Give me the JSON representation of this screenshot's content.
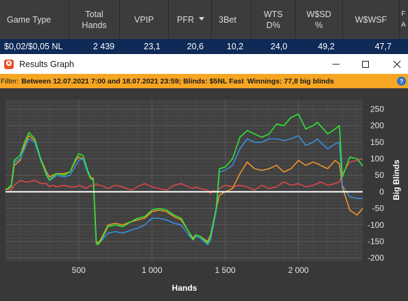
{
  "stats_table": {
    "headers": [
      "Game Type",
      "Total Hands",
      "VPIP",
      "PFR",
      "3Bet",
      "WTS D%",
      "W$SD %",
      "W$WSF",
      "F A"
    ],
    "header_lines": [
      [
        "Game Type"
      ],
      [
        "Total",
        "Hands"
      ],
      [
        "VPIP"
      ],
      [
        "PFR"
      ],
      [
        "3Bet"
      ],
      [
        "WTS",
        "D%"
      ],
      [
        "W$SD",
        "%"
      ],
      [
        "W$WSF"
      ],
      [
        "F",
        "A"
      ]
    ],
    "row": [
      "$0,02/$0,05 NL",
      "2 439",
      "23,1",
      "20,6",
      "10,2",
      "24,0",
      "49,2",
      "47,7",
      ""
    ]
  },
  "window": {
    "title": "Results Graph",
    "app_icon": "holdem-manager-icon",
    "controls": [
      "minimize",
      "maximize",
      "close"
    ]
  },
  "filter": {
    "prefix": "Filter:",
    "range": "Between 12.07.2021 7:00 and 18.07.2021 23:59; Blinds: $5NL Fast",
    "winnings": "Winnings: 77,8 big blinds"
  },
  "chart_data": {
    "type": "line",
    "xlabel": "Hands",
    "ylabel": "Big Blinds",
    "xlim": [
      0,
      2439
    ],
    "ylim": [
      -210,
      280
    ],
    "xticks": [
      500,
      1000,
      1500,
      2000
    ],
    "xtick_labels": [
      "500",
      "1 000",
      "1 500",
      "2 000"
    ],
    "yticks": [
      250,
      200,
      150,
      100,
      50,
      0,
      -50,
      -100,
      -150,
      -200
    ],
    "grid": true,
    "series": [
      {
        "color": "#2ee82e",
        "x": [
          0,
          40,
          60,
          100,
          130,
          160,
          200,
          240,
          280,
          300,
          320,
          350,
          400,
          440,
          480,
          500,
          530,
          550,
          580,
          600,
          620,
          630,
          650,
          700,
          750,
          800,
          860,
          900,
          950,
          1000,
          1050,
          1100,
          1150,
          1200,
          1250,
          1280,
          1300,
          1330,
          1380,
          1400,
          1420,
          1440,
          1460,
          1500,
          1550,
          1600,
          1650,
          1700,
          1750,
          1800,
          1850,
          1900,
          1950,
          2000,
          2050,
          2100,
          2130,
          2150,
          2200,
          2250,
          2280,
          2300,
          2350,
          2400,
          2439
        ],
        "y": [
          5,
          20,
          95,
          110,
          150,
          180,
          160,
          100,
          50,
          35,
          45,
          55,
          50,
          60,
          100,
          115,
          110,
          80,
          40,
          35,
          -155,
          -160,
          -150,
          -105,
          -100,
          -105,
          -90,
          -80,
          -75,
          -55,
          -50,
          -55,
          -70,
          -80,
          -120,
          -145,
          -130,
          -135,
          -155,
          -135,
          -90,
          -45,
          70,
          75,
          100,
          165,
          185,
          175,
          165,
          175,
          205,
          200,
          225,
          235,
          190,
          200,
          210,
          200,
          175,
          190,
          200,
          45,
          105,
          100,
          78
        ]
      },
      {
        "color": "#3b8ee0",
        "x": [
          0,
          40,
          60,
          100,
          130,
          160,
          200,
          240,
          280,
          300,
          320,
          350,
          400,
          440,
          480,
          500,
          530,
          550,
          580,
          600,
          620,
          630,
          650,
          700,
          750,
          800,
          860,
          900,
          950,
          1000,
          1050,
          1100,
          1150,
          1200,
          1250,
          1280,
          1300,
          1330,
          1380,
          1400,
          1420,
          1440,
          1460,
          1500,
          1550,
          1600,
          1650,
          1700,
          1750,
          1800,
          1850,
          1900,
          1950,
          2000,
          2050,
          2100,
          2130,
          2150,
          2200,
          2250,
          2280,
          2300,
          2350,
          2400,
          2439
        ],
        "y": [
          5,
          18,
          90,
          100,
          130,
          160,
          150,
          95,
          55,
          35,
          40,
          50,
          45,
          50,
          80,
          95,
          100,
          70,
          40,
          35,
          -155,
          -160,
          -150,
          -125,
          -120,
          -125,
          -115,
          -110,
          -100,
          -80,
          -80,
          -85,
          -95,
          -100,
          -130,
          -145,
          -135,
          -140,
          -160,
          -145,
          -100,
          -55,
          60,
          65,
          80,
          130,
          160,
          150,
          150,
          160,
          160,
          155,
          160,
          170,
          140,
          150,
          160,
          150,
          130,
          145,
          150,
          20,
          -15,
          -20,
          -20
        ]
      },
      {
        "color": "#f0952a",
        "x": [
          0,
          40,
          60,
          100,
          130,
          160,
          200,
          240,
          280,
          300,
          320,
          350,
          400,
          440,
          480,
          500,
          530,
          550,
          580,
          600,
          620,
          630,
          650,
          700,
          750,
          800,
          860,
          900,
          950,
          1000,
          1050,
          1100,
          1150,
          1200,
          1250,
          1280,
          1300,
          1330,
          1380,
          1400,
          1420,
          1440,
          1460,
          1500,
          1550,
          1600,
          1650,
          1700,
          1750,
          1800,
          1850,
          1900,
          1950,
          2000,
          2050,
          2100,
          2130,
          2150,
          2200,
          2250,
          2280,
          2300,
          2350,
          2400,
          2439
        ],
        "y": [
          5,
          15,
          80,
          95,
          140,
          170,
          155,
          100,
          60,
          45,
          50,
          55,
          55,
          60,
          95,
          105,
          100,
          75,
          45,
          40,
          -150,
          -155,
          -145,
          -100,
          -95,
          -100,
          -90,
          -85,
          -80,
          -60,
          -55,
          -60,
          -75,
          -85,
          -120,
          -140,
          -130,
          -135,
          -150,
          -130,
          -90,
          -50,
          -10,
          0,
          10,
          55,
          90,
          70,
          65,
          70,
          80,
          60,
          70,
          95,
          80,
          90,
          85,
          80,
          70,
          95,
          85,
          15,
          -55,
          -70,
          -50
        ]
      },
      {
        "color": "#e0464a",
        "x": [
          0,
          40,
          60,
          100,
          130,
          160,
          200,
          240,
          280,
          300,
          320,
          350,
          400,
          440,
          480,
          500,
          530,
          550,
          580,
          600,
          620,
          630,
          650,
          700,
          750,
          800,
          860,
          900,
          950,
          1000,
          1050,
          1100,
          1150,
          1200,
          1250,
          1280,
          1300,
          1330,
          1380,
          1400,
          1420,
          1440,
          1460,
          1500,
          1550,
          1600,
          1650,
          1700,
          1750,
          1800,
          1850,
          1900,
          1950,
          2000,
          2050,
          2100,
          2130,
          2150,
          2200,
          2250,
          2280,
          2300,
          2350,
          2400,
          2439
        ],
        "y": [
          10,
          5,
          20,
          35,
          30,
          30,
          35,
          25,
          25,
          15,
          20,
          15,
          20,
          15,
          15,
          20,
          15,
          10,
          20,
          15,
          25,
          20,
          20,
          10,
          20,
          15,
          5,
          15,
          25,
          15,
          10,
          5,
          20,
          25,
          15,
          10,
          15,
          10,
          5,
          -5,
          5,
          0,
          10,
          20,
          15,
          20,
          15,
          5,
          20,
          10,
          15,
          30,
          20,
          25,
          15,
          20,
          25,
          30,
          20,
          25,
          30,
          55,
          90,
          95,
          100
        ]
      }
    ]
  }
}
